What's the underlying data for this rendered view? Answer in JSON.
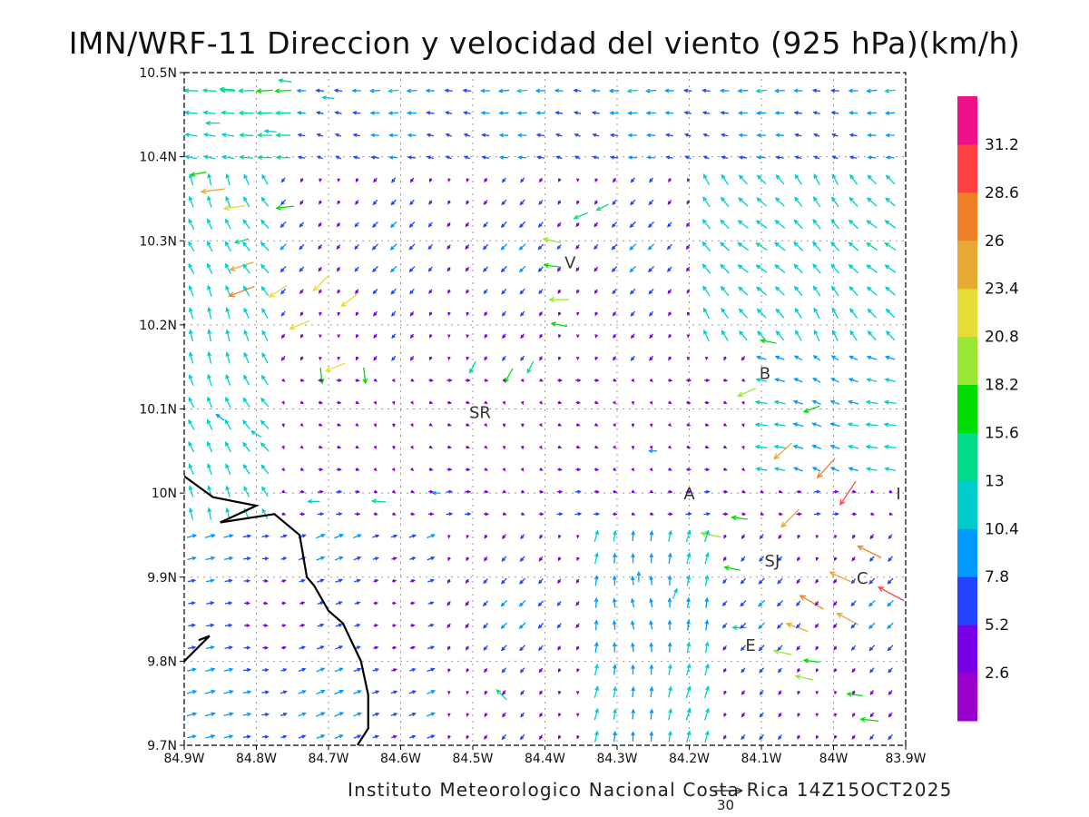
{
  "title": "IMN/WRF-11 Direccion y velocidad del viento (925 hPa)(km/h)",
  "footer": "Instituto Meteorologico Nacional Costa Rica 14Z15OCT2025",
  "reference_vector": {
    "value": 30,
    "label": "30"
  },
  "axes": {
    "x_range": [
      -84.9,
      -83.9
    ],
    "y_range": [
      9.7,
      10.5
    ],
    "x_ticks": [
      {
        "value": -84.9,
        "label": "84.9W"
      },
      {
        "value": -84.8,
        "label": "84.8W"
      },
      {
        "value": -84.7,
        "label": "84.7W"
      },
      {
        "value": -84.6,
        "label": "84.6W"
      },
      {
        "value": -84.5,
        "label": "84.5W"
      },
      {
        "value": -84.4,
        "label": "84.4W"
      },
      {
        "value": -84.3,
        "label": "84.3W"
      },
      {
        "value": -84.2,
        "label": "84.2W"
      },
      {
        "value": -84.1,
        "label": "84.1W"
      },
      {
        "value": -84.0,
        "label": "84W"
      },
      {
        "value": -83.9,
        "label": "83.9W"
      }
    ],
    "y_ticks": [
      {
        "value": 9.7,
        "label": "9.7N"
      },
      {
        "value": 9.8,
        "label": "9.8N"
      },
      {
        "value": 9.9,
        "label": "9.9N"
      },
      {
        "value": 10.0,
        "label": "10N"
      },
      {
        "value": 10.1,
        "label": "10.1N"
      },
      {
        "value": 10.2,
        "label": "10.2N"
      },
      {
        "value": 10.3,
        "label": "10.3N"
      },
      {
        "value": 10.4,
        "label": "10.4N"
      },
      {
        "value": 10.5,
        "label": "10.5N"
      }
    ],
    "grid": "dotted"
  },
  "places": [
    {
      "label": "V",
      "lon": -84.365,
      "lat": 10.275
    },
    {
      "label": "B",
      "lon": -84.095,
      "lat": 10.143
    },
    {
      "label": "SR",
      "lon": -84.49,
      "lat": 10.097
    },
    {
      "label": "A",
      "lon": -84.2,
      "lat": 10.0
    },
    {
      "label": "I",
      "lon": -83.91,
      "lat": 10.0
    },
    {
      "label": "SJ",
      "lon": -84.085,
      "lat": 9.92
    },
    {
      "label": "C",
      "lon": -83.96,
      "lat": 9.9
    },
    {
      "label": "E",
      "lon": -84.115,
      "lat": 9.82
    }
  ],
  "coastline": [
    [
      -84.9,
      10.02
    ],
    [
      -84.86,
      9.995
    ],
    [
      -84.8,
      9.985
    ],
    [
      -84.85,
      9.965
    ],
    [
      -84.775,
      9.975
    ],
    [
      -84.74,
      9.95
    ],
    [
      -84.73,
      9.9
    ],
    [
      -84.72,
      9.89
    ],
    [
      -84.7,
      9.86
    ],
    [
      -84.68,
      9.845
    ],
    [
      -84.655,
      9.8
    ],
    [
      -84.645,
      9.76
    ],
    [
      -84.645,
      9.72
    ],
    [
      -84.66,
      9.7
    ]
  ],
  "coastline_south": [
    [
      -84.9,
      9.8
    ],
    [
      -84.865,
      9.83
    ],
    [
      -84.88,
      9.825
    ]
  ],
  "colorbar": {
    "colors": [
      "#9900cc",
      "#7700e6",
      "#2244ff",
      "#0099ff",
      "#00cccc",
      "#00dd88",
      "#00dd00",
      "#99e633",
      "#e6dc33",
      "#e6aa33",
      "#f08028",
      "#ff4040",
      "#ee1188"
    ],
    "labels": [
      "2.6",
      "5.2",
      "7.8",
      "10.4",
      "13",
      "15.6",
      "18.2",
      "20.8",
      "23.4",
      "26",
      "28.6",
      "31.2"
    ]
  },
  "chart_data": {
    "type": "vector-field",
    "title": "IMN/WRF-11 Direccion y velocidad del viento (925 hPa)(km/h)",
    "xlim": [
      -84.9,
      -83.9
    ],
    "ylim": [
      9.7,
      10.5
    ],
    "units": "km/h",
    "grid": "dotted",
    "color_levels": [
      2.6,
      5.2,
      7.8,
      10.4,
      13,
      15.6,
      18.2,
      20.8,
      23.4,
      26,
      28.6,
      31.2
    ],
    "vectors": [
      {
        "lon": -84.84,
        "lat": 10.48,
        "u": -15,
        "v": 1
      },
      {
        "lon": -84.76,
        "lat": 10.49,
        "u": -13,
        "v": 2
      },
      {
        "lon": -84.7,
        "lat": 10.47,
        "u": -12,
        "v": 1
      },
      {
        "lon": -84.86,
        "lat": 10.44,
        "u": -14,
        "v": 0
      },
      {
        "lon": -84.78,
        "lat": 10.43,
        "u": -12,
        "v": 1
      },
      {
        "lon": -84.88,
        "lat": 10.38,
        "u": -16,
        "v": -3
      },
      {
        "lon": -84.86,
        "lat": 10.36,
        "u": -24,
        "v": -3
      },
      {
        "lon": -84.83,
        "lat": 10.34,
        "u": -22,
        "v": -3
      },
      {
        "lon": -84.76,
        "lat": 10.34,
        "u": -18,
        "v": -2
      },
      {
        "lon": -84.82,
        "lat": 10.3,
        "u": -14,
        "v": -4
      },
      {
        "lon": -84.82,
        "lat": 10.27,
        "u": -24,
        "v": -8
      },
      {
        "lon": -84.82,
        "lat": 10.24,
        "u": -26,
        "v": -10
      },
      {
        "lon": -84.77,
        "lat": 10.24,
        "u": -18,
        "v": -12
      },
      {
        "lon": -84.71,
        "lat": 10.25,
        "u": -16,
        "v": -16
      },
      {
        "lon": -84.74,
        "lat": 10.2,
        "u": -20,
        "v": -8
      },
      {
        "lon": -84.67,
        "lat": 10.23,
        "u": -18,
        "v": -14
      },
      {
        "lon": -84.69,
        "lat": 10.15,
        "u": -20,
        "v": -8
      },
      {
        "lon": -84.71,
        "lat": 10.14,
        "u": 2,
        "v": -16
      },
      {
        "lon": -84.65,
        "lat": 10.14,
        "u": 2,
        "v": -16
      },
      {
        "lon": -84.39,
        "lat": 10.3,
        "u": -18,
        "v": 4
      },
      {
        "lon": -84.39,
        "lat": 10.27,
        "u": -16,
        "v": 2
      },
      {
        "lon": -84.38,
        "lat": 10.23,
        "u": -20,
        "v": 0
      },
      {
        "lon": -84.38,
        "lat": 10.2,
        "u": -16,
        "v": 3
      },
      {
        "lon": -84.35,
        "lat": 10.33,
        "u": -14,
        "v": -6
      },
      {
        "lon": -84.32,
        "lat": 10.34,
        "u": -12,
        "v": -6
      },
      {
        "lon": -84.45,
        "lat": 10.14,
        "u": -8,
        "v": -14
      },
      {
        "lon": -84.42,
        "lat": 10.15,
        "u": -6,
        "v": -12
      },
      {
        "lon": -84.5,
        "lat": 10.15,
        "u": -6,
        "v": -12
      },
      {
        "lon": -84.09,
        "lat": 10.18,
        "u": -16,
        "v": 3
      },
      {
        "lon": -84.12,
        "lat": 10.12,
        "u": -18,
        "v": -8
      },
      {
        "lon": -84.03,
        "lat": 10.1,
        "u": -16,
        "v": -6
      },
      {
        "lon": -84.07,
        "lat": 10.05,
        "u": -18,
        "v": -16
      },
      {
        "lon": -84.01,
        "lat": 10.03,
        "u": -18,
        "v": -20
      },
      {
        "lon": -83.98,
        "lat": 10.0,
        "u": -16,
        "v": -24
      },
      {
        "lon": -84.06,
        "lat": 9.97,
        "u": -18,
        "v": -18
      },
      {
        "lon": -84.13,
        "lat": 9.97,
        "u": -16,
        "v": 2
      },
      {
        "lon": -84.17,
        "lat": 9.95,
        "u": -20,
        "v": 4
      },
      {
        "lon": -84.14,
        "lat": 9.91,
        "u": -16,
        "v": 3
      },
      {
        "lon": -83.99,
        "lat": 9.9,
        "u": -22,
        "v": 10
      },
      {
        "lon": -83.95,
        "lat": 9.93,
        "u": -24,
        "v": 12
      },
      {
        "lon": -83.92,
        "lat": 9.88,
        "u": -26,
        "v": 14
      },
      {
        "lon": -84.03,
        "lat": 9.87,
        "u": -24,
        "v": 14
      },
      {
        "lon": -83.98,
        "lat": 9.85,
        "u": -22,
        "v": 12
      },
      {
        "lon": -84.05,
        "lat": 9.84,
        "u": -22,
        "v": 8
      },
      {
        "lon": -84.07,
        "lat": 9.81,
        "u": -18,
        "v": 4
      },
      {
        "lon": -84.13,
        "lat": 9.84,
        "u": -14,
        "v": 0
      },
      {
        "lon": -84.03,
        "lat": 9.8,
        "u": -16,
        "v": 2
      },
      {
        "lon": -84.04,
        "lat": 9.78,
        "u": -18,
        "v": 4
      },
      {
        "lon": -83.97,
        "lat": 9.76,
        "u": -16,
        "v": 2
      },
      {
        "lon": -83.95,
        "lat": 9.73,
        "u": -18,
        "v": 2
      },
      {
        "lon": -84.46,
        "lat": 9.76,
        "u": -10,
        "v": 10
      },
      {
        "lon": -84.85,
        "lat": 10.09,
        "u": -8,
        "v": 6
      },
      {
        "lon": -84.8,
        "lat": 10.07,
        "u": -10,
        "v": 6
      },
      {
        "lon": -84.72,
        "lat": 9.99,
        "u": -12,
        "v": 0
      },
      {
        "lon": -84.63,
        "lat": 9.99,
        "u": -14,
        "v": 1
      },
      {
        "lon": -84.55,
        "lat": 10.0,
        "u": -8,
        "v": 0
      },
      {
        "lon": -84.25,
        "lat": 10.05,
        "u": -8,
        "v": 0
      },
      {
        "lon": -84.27,
        "lat": 9.9,
        "u": 0,
        "v": 10
      },
      {
        "lon": -84.22,
        "lat": 9.88,
        "u": 4,
        "v": 10
      }
    ]
  }
}
